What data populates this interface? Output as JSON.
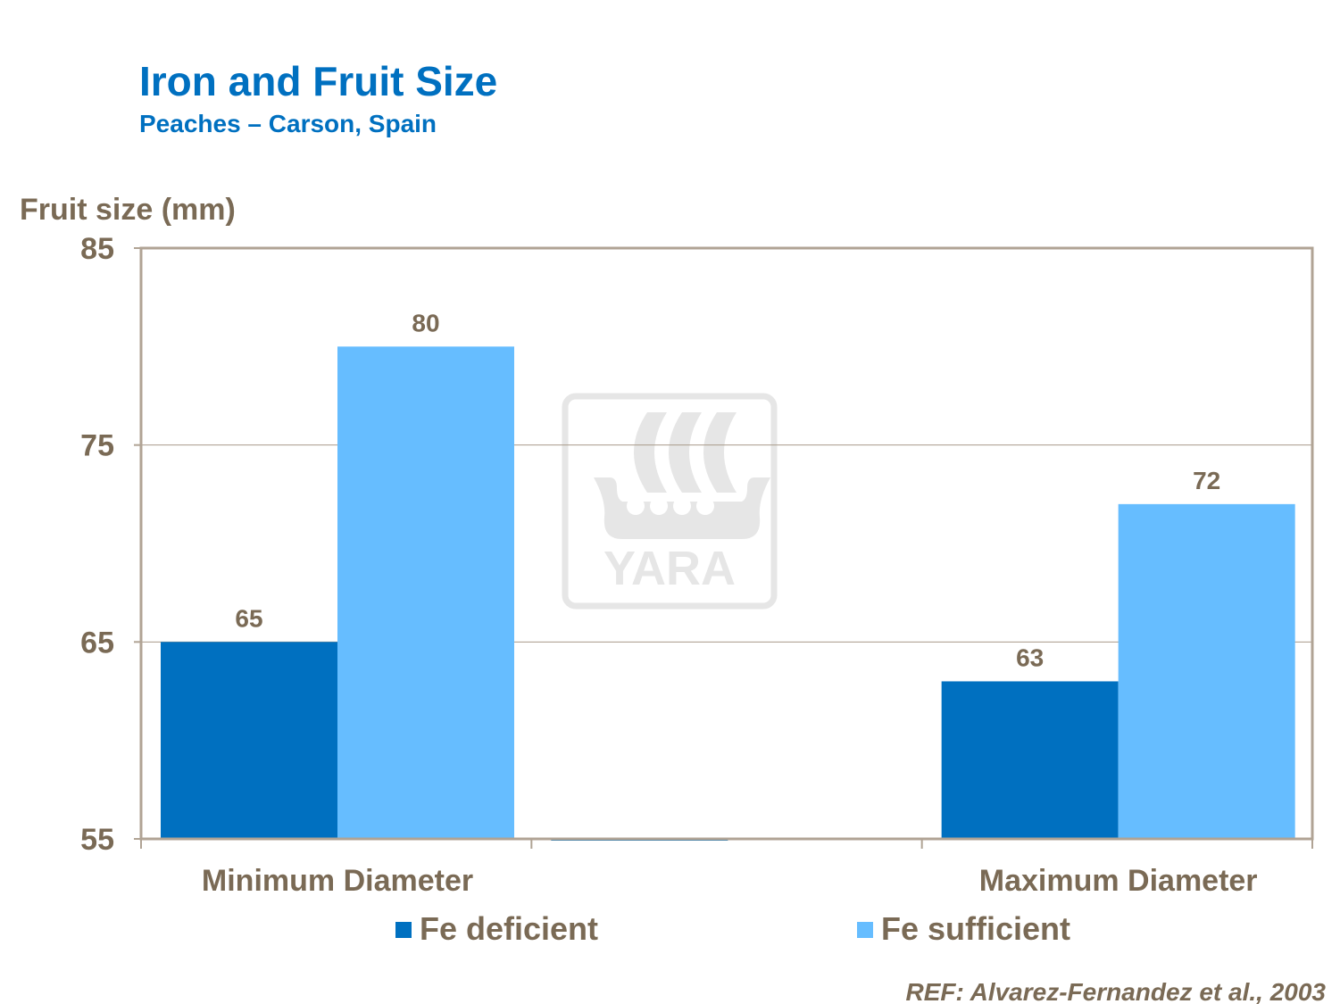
{
  "chart_data": {
    "type": "bar",
    "title": "Iron and Fruit Size",
    "subtitle": "Peaches  – Carson, Spain",
    "ylabel": "Fruit size (mm)",
    "xlabel": "",
    "ylim": [
      55,
      85
    ],
    "yticks": [
      "85",
      "75",
      "65",
      "55"
    ],
    "ytick_values": [
      85,
      75,
      65,
      55
    ],
    "categories": [
      "Minimum Diameter",
      "",
      "Maximum Diameter"
    ],
    "series": [
      {
        "name": "Fe deficient",
        "values": [
          65,
          55,
          63
        ],
        "labels": [
          "65",
          "",
          "63"
        ],
        "color": "#0070C0"
      },
      {
        "name": "Fe sufficient",
        "values": [
          80,
          null,
          72
        ],
        "labels": [
          "80",
          "",
          "72"
        ],
        "color": "#66BDFF"
      }
    ],
    "grid": true,
    "legend_position": "bottom",
    "reference": "REF: Alvarez-Fernandez et al., 2003",
    "watermark": "YARA",
    "text_color": "#7A6A55",
    "title_color": "#0070C0"
  }
}
